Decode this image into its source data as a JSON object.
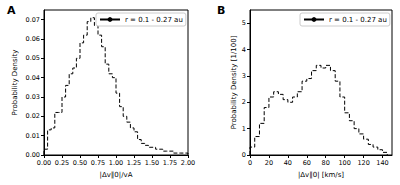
{
  "chart_data": [
    {
      "type": "histogram",
      "title": "A",
      "x_label": "|Δv∥0|/vA",
      "y_label": "Probability Density",
      "series": [
        {
          "name": "r = 0.1 - 0.27 au",
          "color": "#000000",
          "line_style": "dashed",
          "bins": [
            0,
            0.05,
            0.1,
            0.15,
            0.2,
            0.25,
            0.3,
            0.35,
            0.4,
            0.45,
            0.5,
            0.55,
            0.6,
            0.65,
            0.7,
            0.75,
            0.8,
            0.85,
            0.9,
            0.95,
            1.0,
            1.05,
            1.1,
            1.15,
            1.2,
            1.25,
            1.3,
            1.35,
            1.4,
            1.45,
            1.5,
            1.55,
            1.6,
            1.65,
            1.7,
            1.75,
            1.8,
            1.85,
            1.9,
            1.95,
            2.0
          ],
          "values": [
            0.003,
            0.013,
            0.014,
            0.022,
            0.022,
            0.03,
            0.036,
            0.042,
            0.045,
            0.05,
            0.058,
            0.062,
            0.069,
            0.071,
            0.067,
            0.062,
            0.056,
            0.047,
            0.042,
            0.04,
            0.032,
            0.025,
            0.02,
            0.017,
            0.014,
            0.012,
            0.008,
            0.006,
            0.005,
            0.004,
            0.004,
            0.003,
            0.003,
            0.002,
            0.002,
            0.002,
            0.001,
            0.001,
            0.001,
            0.001
          ]
        }
      ],
      "xlim": [
        0,
        2
      ],
      "xticks": [
        {
          "value": 0,
          "label": "0.00"
        },
        {
          "value": 0.25,
          "label": "0.25"
        },
        {
          "value": 0.5,
          "label": "0.50"
        },
        {
          "value": 0.75,
          "label": "0.75"
        },
        {
          "value": 1,
          "label": "1.00"
        },
        {
          "value": 1.25,
          "label": "1.25"
        },
        {
          "value": 1.5,
          "label": "1.50"
        },
        {
          "value": 1.75,
          "label": "1.75"
        },
        {
          "value": 2,
          "label": "2.00"
        }
      ],
      "ylim": [
        0,
        0.075
      ],
      "yticks": [
        {
          "value": 0,
          "label": "0.00"
        },
        0.01,
        0.02,
        0.03,
        0.04,
        0.05,
        0.06,
        0.07
      ],
      "legend": "upper right",
      "grid": false
    },
    {
      "type": "histogram",
      "title": "B",
      "x_label": "|Δv∥0| [km/s]",
      "y_label": "Probability Density [1/100]",
      "series": [
        {
          "name": "r = 0.1 - 0.27 au",
          "color": "#000000",
          "line_style": "dashed",
          "bins": [
            0,
            5,
            10,
            15,
            20,
            25,
            30,
            35,
            40,
            45,
            50,
            55,
            60,
            65,
            70,
            75,
            80,
            85,
            90,
            95,
            100,
            105,
            110,
            115,
            120,
            125,
            130,
            135,
            140,
            145
          ],
          "values": [
            0.3,
            0.7,
            1.2,
            1.8,
            2.2,
            2.4,
            2.3,
            2.1,
            2.0,
            2.2,
            2.4,
            2.8,
            2.9,
            3.2,
            3.4,
            3.3,
            3.4,
            3.2,
            2.8,
            2.2,
            1.6,
            1.3,
            1.0,
            0.8,
            0.6,
            0.4,
            0.3,
            0.2,
            0.1
          ]
        }
      ],
      "xlim": [
        0,
        150
      ],
      "xticks": [
        0,
        20,
        40,
        60,
        80,
        100,
        120,
        140
      ],
      "ylim": [
        0,
        5.5
      ],
      "yticks": [
        0,
        1,
        2,
        3,
        4,
        5
      ],
      "legend": "upper right",
      "grid": false
    }
  ]
}
